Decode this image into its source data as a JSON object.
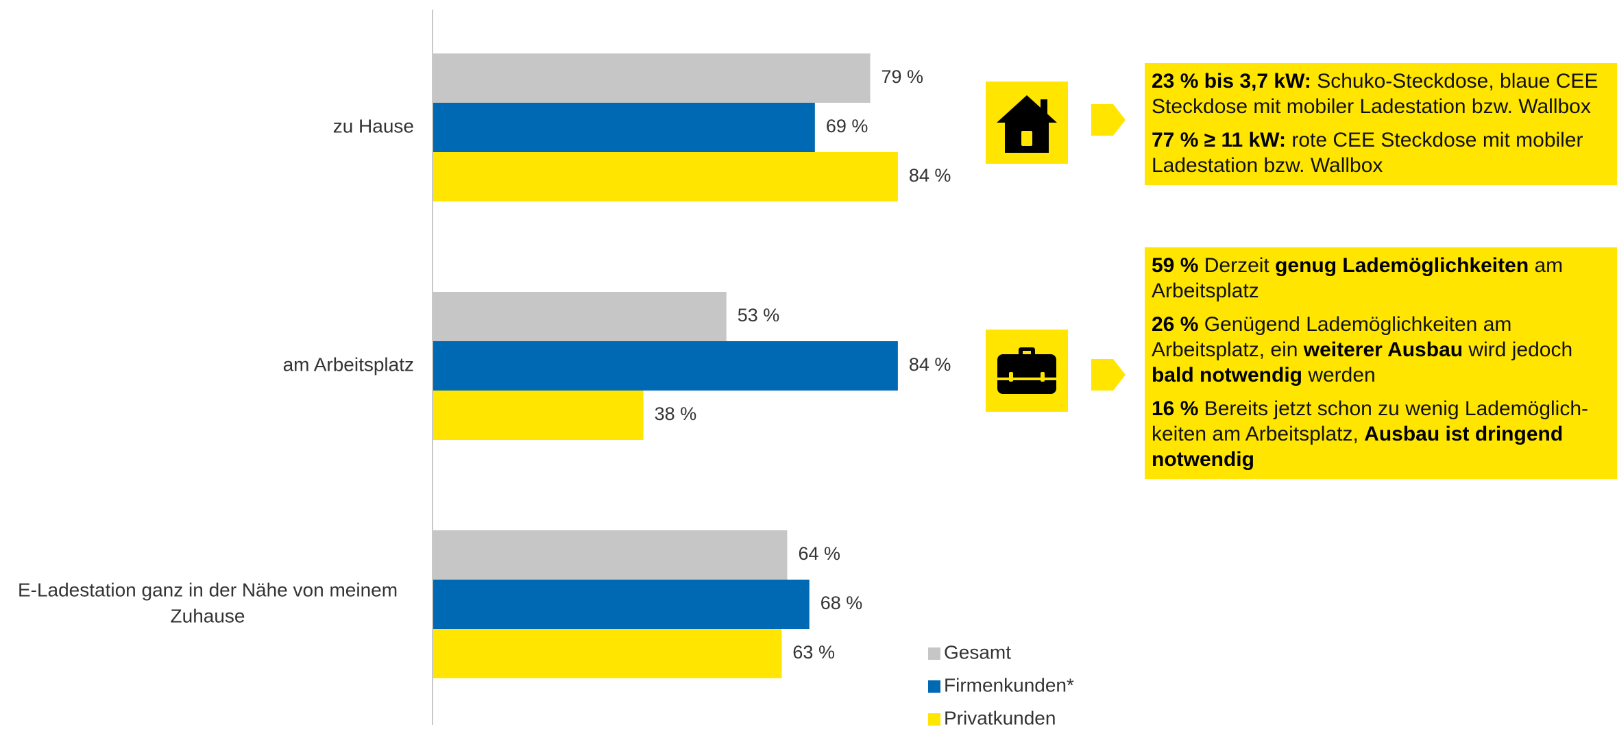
{
  "colors": {
    "gesamt": "#C6C6C6",
    "firmenkunden": "#0069B4",
    "privatkunden": "#FFE500",
    "axis": "#C8C8C8",
    "text": "#333333"
  },
  "chart_data": {
    "type": "bar",
    "orientation": "horizontal",
    "categories": [
      "zu Hause",
      "am Arbeitsplatz",
      "E-Ladestation ganz in der Nähe von meinem Zuhause"
    ],
    "category_label_lines": [
      [
        "zu Hause"
      ],
      [
        "am Arbeitsplatz"
      ],
      [
        "E-Ladestation ganz in der Nähe von meinem",
        "Zuhause"
      ]
    ],
    "series": [
      {
        "name": "Gesamt",
        "values": [
          79,
          53,
          64
        ],
        "labels": [
          "79 %",
          "53 %",
          "64 %"
        ]
      },
      {
        "name": "Firmenkunden*",
        "values": [
          69,
          84,
          68
        ],
        "labels": [
          "69 %",
          "84 %",
          "68 %"
        ]
      },
      {
        "name": "Privatkunden",
        "values": [
          84,
          38,
          63
        ],
        "labels": [
          "84 %",
          "38 %",
          "63 %"
        ]
      }
    ],
    "xlim": [
      0,
      100
    ],
    "grid": false,
    "legend_position": "bottom-right"
  },
  "icons": {
    "home": "house-icon",
    "work": "briefcase-icon",
    "pointer": "chevron-arrow-icon"
  },
  "info_home": {
    "p1_bold": "23 % bis 3,7 kW:",
    "p1_rest": " Schuko-Steckdose, blaue CEE Steckdose mit mobiler Ladestation bzw. Wallbox",
    "p2_bold": "77 % ≥ 11 kW:",
    "p2_rest": " rote CEE Steckdose mit mobiler Ladestation bzw. Wallbox"
  },
  "info_work": {
    "p1_bold": "59 %",
    "p1_mid": " Derzeit ",
    "p1_bold2": "genug Lademöglichkeiten",
    "p1_rest": " am Arbeitsplatz",
    "p2_bold": "26 %",
    "p2_mid": " Genügend Lademöglichkeiten am Arbeitsplatz, ein ",
    "p2_bold2": "weiterer Ausbau",
    "p2_mid2": " wird jedoch ",
    "p2_bold3": "bald notwendig",
    "p2_rest": " werden",
    "p3_bold": "16 %",
    "p3_mid": " Bereits jetzt schon zu wenig Lademöglich-keiten am Arbeitsplatz, ",
    "p3_bold2": "Ausbau ist dringend notwendig"
  }
}
